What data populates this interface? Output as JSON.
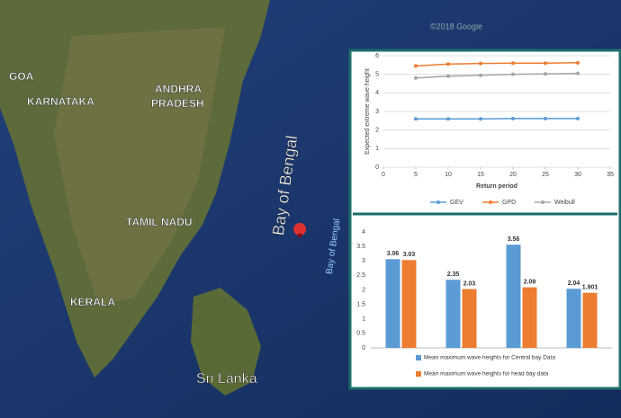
{
  "map": {
    "labels": [
      "GOA",
      "KARNATAKA",
      "ANDHRA",
      "PRADESH",
      "TAMIL NADU",
      "KERALA",
      "Sri Lanka",
      "Bay of Bengal",
      "Bay of Bengal",
      "©2018 Google"
    ]
  },
  "chart_data": [
    {
      "type": "line",
      "x_label": "Return period",
      "y_label": "Expected extreme wave height",
      "x": [
        5,
        10,
        15,
        20,
        25,
        30
      ],
      "series": [
        {
          "name": "GEV",
          "color": "#5b9bd5",
          "values": [
            2.6,
            2.6,
            2.6,
            2.62,
            2.62,
            2.62
          ]
        },
        {
          "name": "GPD",
          "color": "#ed7d31",
          "values": [
            5.45,
            5.55,
            5.58,
            5.6,
            5.6,
            5.62
          ]
        },
        {
          "name": "Weibull",
          "color": "#a5a5a5",
          "values": [
            4.8,
            4.9,
            4.95,
            5.0,
            5.02,
            5.05
          ]
        }
      ],
      "xlim": [
        0,
        35
      ],
      "xticks": [
        0,
        5,
        10,
        15,
        20,
        25,
        30,
        35
      ],
      "ylim": [
        0,
        6
      ],
      "yticks": [
        0,
        1,
        2,
        3,
        4,
        5,
        6
      ],
      "grid": true,
      "legend": "bottom"
    },
    {
      "type": "bar",
      "categories": [
        null,
        null,
        null,
        null
      ],
      "series": [
        {
          "name": "Mean maximum wave heights for Central bay Data",
          "color": "#5b9bd5",
          "values": [
            3.06,
            2.35,
            3.56,
            2.04
          ]
        },
        {
          "name": "Mean maximum wave heights for head bay data",
          "color": "#ed7d31",
          "values": [
            3.03,
            2.03,
            2.09,
            1.901
          ]
        }
      ],
      "ylim": [
        0,
        4
      ],
      "yticks": [
        0,
        0.5,
        1,
        1.5,
        2,
        2.5,
        3,
        3.5,
        4
      ],
      "grid": false,
      "legend": "bottom"
    }
  ]
}
